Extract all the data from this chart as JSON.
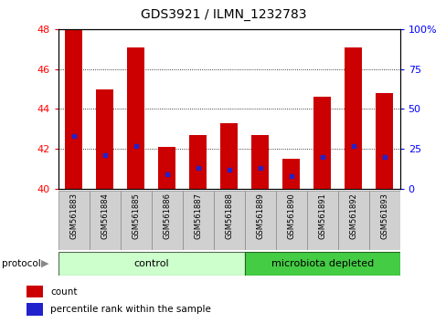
{
  "title": "GDS3921 / ILMN_1232783",
  "samples": [
    "GSM561883",
    "GSM561884",
    "GSM561885",
    "GSM561886",
    "GSM561887",
    "GSM561888",
    "GSM561889",
    "GSM561890",
    "GSM561891",
    "GSM561892",
    "GSM561893"
  ],
  "counts": [
    48.0,
    45.0,
    47.1,
    42.1,
    42.7,
    43.3,
    42.7,
    41.5,
    44.6,
    47.1,
    44.8
  ],
  "percentile_ranks": [
    33,
    21,
    27,
    9,
    13,
    12,
    13,
    8,
    20,
    27,
    20
  ],
  "ylim_left": [
    40,
    48
  ],
  "ylim_right": [
    0,
    100
  ],
  "yticks_left": [
    40,
    42,
    44,
    46,
    48
  ],
  "yticks_right": [
    0,
    25,
    50,
    75,
    100
  ],
  "ytick_labels_right": [
    "0",
    "25",
    "50",
    "75",
    "100%"
  ],
  "bar_color": "#cc0000",
  "dot_color": "#2222cc",
  "control_samples": 6,
  "microbiota_samples": 5,
  "control_color": "#ccffcc",
  "microbiota_color": "#44cc44",
  "label_box_color": "#d0d0d0",
  "bar_width": 0.55
}
